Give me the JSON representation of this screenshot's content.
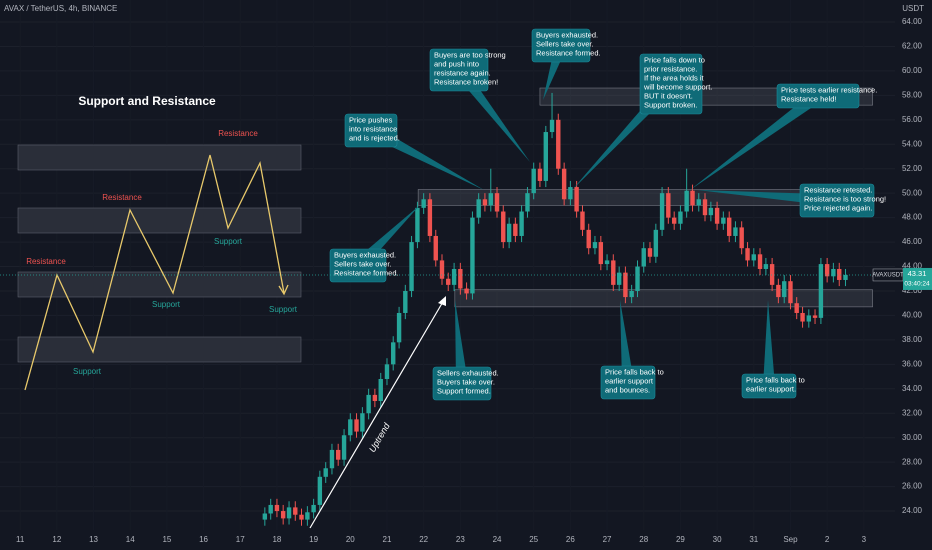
{
  "chart_data": {
    "type": "candlestick",
    "symbol": "AVAX / TetherUS, 4h, BINANCE",
    "currency": "USDT",
    "ticker": "AVAXUSDT",
    "countdown": "03:40:24",
    "trend_label": "Uptrend",
    "up_color": "#26a69a",
    "down_color": "#ef5350",
    "grid": true,
    "xlim": [
      10.45,
      34.85
    ],
    "ylim": [
      22.45,
      65.8
    ],
    "xticks": [
      11,
      12,
      13,
      14,
      15,
      16,
      17,
      18,
      19,
      20,
      21,
      22,
      23,
      24,
      25,
      26,
      27,
      28,
      29,
      30,
      31,
      {
        "value": 32,
        "label": "Sep"
      },
      {
        "value": 33,
        "label": "2"
      },
      {
        "value": 34,
        "label": "3"
      }
    ],
    "yticks": [
      {
        "value": 24,
        "label": "24.00"
      },
      {
        "value": 26,
        "label": "26.00"
      },
      {
        "value": 28,
        "label": "28.00"
      },
      {
        "value": 30,
        "label": "30.00"
      },
      {
        "value": 32,
        "label": "32.00"
      },
      {
        "value": 34,
        "label": "34.00"
      },
      {
        "value": 36,
        "label": "36.00"
      },
      {
        "value": 38,
        "label": "38.00"
      },
      {
        "value": 40,
        "label": "40.00"
      },
      {
        "value": 42,
        "label": "42.00"
      },
      {
        "value": 44,
        "label": "44.00"
      },
      {
        "value": 46,
        "label": "46.00"
      },
      {
        "value": 48,
        "label": "48.00"
      },
      {
        "value": 50,
        "label": "50.00"
      },
      {
        "value": 52,
        "label": "52.00"
      },
      {
        "value": 54,
        "label": "54.00"
      },
      {
        "value": 56,
        "label": "56.00"
      },
      {
        "value": 58,
        "label": "58.00"
      },
      {
        "value": 60,
        "label": "60.00"
      },
      {
        "value": 62,
        "label": "62.00"
      },
      {
        "value": 64,
        "label": "64.00"
      }
    ],
    "x": [
      17.67,
      17.83,
      18,
      18.17,
      18.33,
      18.5,
      18.67,
      18.83,
      19,
      19.17,
      19.33,
      19.5,
      19.67,
      19.83,
      20,
      20.17,
      20.33,
      20.5,
      20.67,
      20.83,
      21,
      21.17,
      21.33,
      21.5,
      21.67,
      21.83,
      22,
      22.17,
      22.33,
      22.5,
      22.67,
      22.83,
      23,
      23.17,
      23.33,
      23.5,
      23.67,
      23.83,
      24,
      24.17,
      24.33,
      24.5,
      24.67,
      24.83,
      25,
      25.17,
      25.33,
      25.5,
      25.67,
      25.83,
      26,
      26.17,
      26.33,
      26.5,
      26.67,
      26.83,
      27,
      27.17,
      27.33,
      27.5,
      27.67,
      27.83,
      28,
      28.17,
      28.33,
      28.5,
      28.67,
      28.83,
      29,
      29.17,
      29.33,
      29.5,
      29.67,
      29.83,
      30,
      30.17,
      30.33,
      30.5,
      30.67,
      30.83,
      31,
      31.17,
      31.33,
      31.5,
      31.67,
      31.83,
      32,
      32.17,
      32.33,
      32.5,
      32.67,
      32.83,
      33,
      33.17,
      33.33,
      33.5
    ],
    "open": [
      23.3,
      23.8,
      24.5,
      24.0,
      23.4,
      24.3,
      23.7,
      23.3,
      23.9,
      24.5,
      26.8,
      27.5,
      29.0,
      28.2,
      30.2,
      31.5,
      30.5,
      32.0,
      33.5,
      33.0,
      34.8,
      36.0,
      37.8,
      40.2,
      42.0,
      46.0,
      48.8,
      49.5,
      46.5,
      44.5,
      43.0,
      42.5,
      43.8,
      42.2,
      41.8,
      48.0,
      49.5,
      49.0,
      50.0,
      48.5,
      46.0,
      47.5,
      46.5,
      48.5,
      50.0,
      52.0,
      51.0,
      55.0,
      56.0,
      52.0,
      49.5,
      50.5,
      48.5,
      47.0,
      45.5,
      46.0,
      44.2,
      44.5,
      42.5,
      43.5,
      41.5,
      42.0,
      44.0,
      45.5,
      44.8,
      47.0,
      50.0,
      48.0,
      47.5,
      48.5,
      50.2,
      49.0,
      49.5,
      48.2,
      48.8,
      47.5,
      48.0,
      46.5,
      47.2,
      45.5,
      44.5,
      45.0,
      43.8,
      44.2,
      42.5,
      41.5,
      42.8,
      41.0,
      40.2,
      39.5,
      40.0,
      39.8,
      44.2,
      43.2,
      43.8,
      42.9
    ],
    "high": [
      24.3,
      25.0,
      25.0,
      24.5,
      24.8,
      24.8,
      24.2,
      24.4,
      25.0,
      27.3,
      28.0,
      29.5,
      29.5,
      30.7,
      32.0,
      32.0,
      32.5,
      34.0,
      34.0,
      35.3,
      36.5,
      38.3,
      40.7,
      42.5,
      46.5,
      49.3,
      50.0,
      50.0,
      47.0,
      45.0,
      43.5,
      44.3,
      44.3,
      42.7,
      48.5,
      50.0,
      50.0,
      52.0,
      50.5,
      49.0,
      48.0,
      48.0,
      49.0,
      50.5,
      52.5,
      52.5,
      55.5,
      58.2,
      56.5,
      52.5,
      51.0,
      51.0,
      49.0,
      47.5,
      46.5,
      46.5,
      45.0,
      45.0,
      44.0,
      44.0,
      42.5,
      44.5,
      46.0,
      46.0,
      47.5,
      50.5,
      50.5,
      48.5,
      49.0,
      52.0,
      50.7,
      50.0,
      50.0,
      49.3,
      49.3,
      48.5,
      48.5,
      47.7,
      47.7,
      46.0,
      45.5,
      45.5,
      44.7,
      44.7,
      43.0,
      43.3,
      43.3,
      41.5,
      40.7,
      40.5,
      40.5,
      44.7,
      44.7,
      44.3,
      44.3,
      43.8
    ],
    "low": [
      22.8,
      23.3,
      23.5,
      22.9,
      22.9,
      23.2,
      22.8,
      22.8,
      23.4,
      24.0,
      26.3,
      27.0,
      27.7,
      27.7,
      29.7,
      30.0,
      30.0,
      31.5,
      32.5,
      32.5,
      34.3,
      35.5,
      37.3,
      39.7,
      41.5,
      45.5,
      48.3,
      46.0,
      44.0,
      42.5,
      42.0,
      42.0,
      41.7,
      41.3,
      41.3,
      47.5,
      48.5,
      48.5,
      48.0,
      45.5,
      45.5,
      46.0,
      46.0,
      48.0,
      49.5,
      50.5,
      50.5,
      54.5,
      51.5,
      49.0,
      49.0,
      48.0,
      46.5,
      45.0,
      45.0,
      43.7,
      43.7,
      42.0,
      42.0,
      41.0,
      41.0,
      41.5,
      43.5,
      44.3,
      44.3,
      46.5,
      47.5,
      47.0,
      47.0,
      48.0,
      48.5,
      48.5,
      47.7,
      47.7,
      47.0,
      47.0,
      46.0,
      46.0,
      45.0,
      44.0,
      44.0,
      43.3,
      43.3,
      42.0,
      41.0,
      41.0,
      40.5,
      39.7,
      39.0,
      39.0,
      39.3,
      39.3,
      42.7,
      42.7,
      42.4,
      42.4
    ],
    "close": [
      23.8,
      24.5,
      24.0,
      23.4,
      24.3,
      23.7,
      23.3,
      23.9,
      24.5,
      26.8,
      27.5,
      29.0,
      28.2,
      30.2,
      31.5,
      30.5,
      32.0,
      33.5,
      33.0,
      34.8,
      36.0,
      37.8,
      40.2,
      42.0,
      46.0,
      48.8,
      49.5,
      46.5,
      44.5,
      43.0,
      42.5,
      43.8,
      42.2,
      41.8,
      48.0,
      49.5,
      49.0,
      50.0,
      48.5,
      46.0,
      47.5,
      46.5,
      48.5,
      50.0,
      52.0,
      51.0,
      55.0,
      56.0,
      52.0,
      49.5,
      50.5,
      48.5,
      47.0,
      45.5,
      46.0,
      44.2,
      44.5,
      42.5,
      43.5,
      41.5,
      42.0,
      44.0,
      45.5,
      44.8,
      47.0,
      50.0,
      48.0,
      47.5,
      48.5,
      50.2,
      49.0,
      49.5,
      48.2,
      48.8,
      47.5,
      48.0,
      46.5,
      47.2,
      45.5,
      44.5,
      45.0,
      43.8,
      44.2,
      42.5,
      41.5,
      42.8,
      41.0,
      40.2,
      39.5,
      40.0,
      39.8,
      44.2,
      43.2,
      43.8,
      42.9,
      43.31
    ],
    "zones": [
      {
        "x": [
          25.17,
          34.24
        ],
        "y": [
          57.2,
          58.6
        ]
      },
      {
        "x": [
          21.85,
          34.24
        ],
        "y": [
          49.0,
          50.3
        ]
      },
      {
        "x": [
          22.85,
          34.24
        ],
        "y": [
          40.7,
          42.1
        ]
      }
    ],
    "annotations": [
      {
        "lines": [
          "Price pushes",
          "into resistance",
          "and is rejected."
        ]
      },
      {
        "lines": [
          "Buyers are too strong",
          "and push into",
          "resistance again.",
          "Resistance broken!"
        ]
      },
      {
        "lines": [
          "Buyers exhausted.",
          "Sellers take over.",
          "Resistance formed."
        ]
      },
      {
        "lines": [
          "Price falls down to",
          "prior resistance.",
          "If the area holds it",
          "will become support.",
          "BUT it doesn't.",
          "Support broken."
        ]
      },
      {
        "lines": [
          "Price tests earlier resistance.",
          "Resistance held!"
        ]
      },
      {
        "lines": [
          "Resistance retested.",
          "Resistance is too strong!",
          "Price rejected again."
        ]
      },
      {
        "lines": [
          "Buyers exhausted.",
          "Sellers take over.",
          "Resistance formed."
        ]
      },
      {
        "lines": [
          "Sellers exhausted.",
          "Buyers take over.",
          "Support formed."
        ]
      },
      {
        "lines": [
          "Price falls back to",
          "earlier support",
          "and bounces."
        ]
      },
      {
        "lines": [
          "Price falls back to",
          "earlier support."
        ]
      }
    ]
  },
  "inset": {
    "title": "Support and Resistance",
    "labels": [
      "Resistance",
      "Support",
      "Resistance",
      "Support",
      "Resistance",
      "Support",
      "Support"
    ]
  }
}
